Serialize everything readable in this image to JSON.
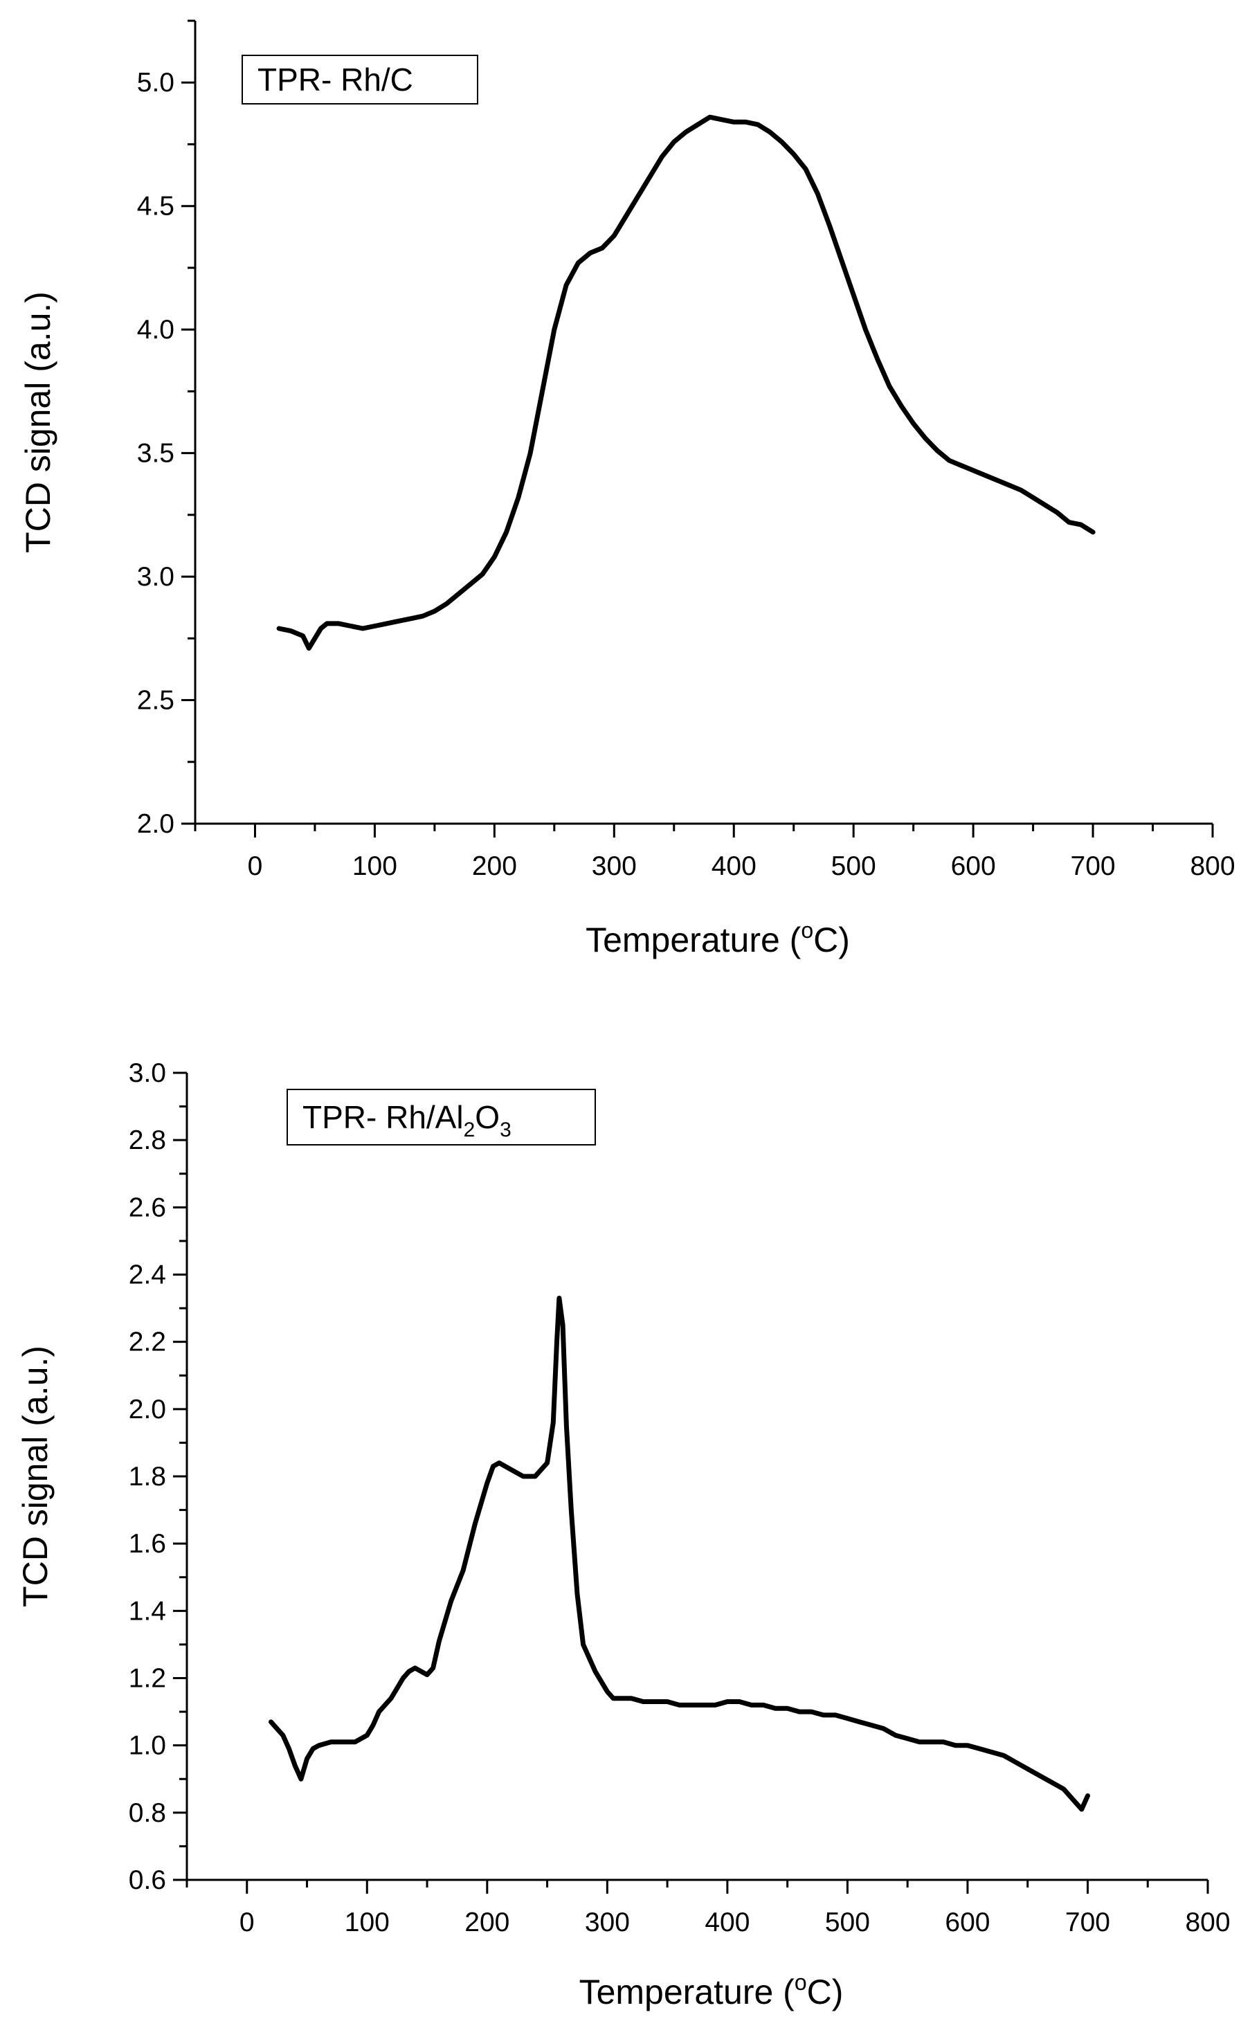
{
  "chart_data": [
    {
      "type": "line",
      "legend_label": "TPR- Rh/C",
      "legend_parts": [
        {
          "t": "TPR- Rh/C",
          "sub": false
        }
      ],
      "xlabel_main": "Temperature (",
      "xlabel_sup": "o",
      "xlabel_end": "C)",
      "ylabel": "TCD signal (a.u.)",
      "xlim": [
        -50,
        800
      ],
      "ylim": [
        2.0,
        5.25
      ],
      "x_ticks": [
        0,
        100,
        200,
        300,
        400,
        500,
        600,
        700,
        800
      ],
      "x_tick_labels": [
        "0",
        "100",
        "200",
        "300",
        "400",
        "500",
        "600",
        "700",
        "800"
      ],
      "y_ticks": [
        2.0,
        2.5,
        3.0,
        3.5,
        4.0,
        4.5,
        5.0
      ],
      "y_tick_labels": [
        "2.0",
        "2.5",
        "3.0",
        "3.5",
        "4.0",
        "4.5",
        "5.0"
      ],
      "series": [
        {
          "name": "TPR- Rh/C",
          "color": "#000000",
          "x": [
            20,
            30,
            40,
            45,
            50,
            55,
            60,
            70,
            80,
            90,
            100,
            110,
            120,
            130,
            140,
            150,
            160,
            170,
            180,
            190,
            200,
            210,
            220,
            230,
            240,
            250,
            260,
            270,
            280,
            290,
            300,
            310,
            320,
            330,
            340,
            350,
            360,
            370,
            380,
            390,
            400,
            410,
            420,
            430,
            440,
            450,
            460,
            470,
            480,
            490,
            500,
            510,
            520,
            530,
            540,
            550,
            560,
            570,
            580,
            590,
            600,
            610,
            620,
            630,
            640,
            650,
            660,
            670,
            680,
            690,
            700
          ],
          "y": [
            2.79,
            2.78,
            2.76,
            2.71,
            2.75,
            2.79,
            2.81,
            2.81,
            2.8,
            2.79,
            2.8,
            2.81,
            2.82,
            2.83,
            2.84,
            2.86,
            2.89,
            2.93,
            2.97,
            3.01,
            3.08,
            3.18,
            3.32,
            3.5,
            3.75,
            4.0,
            4.18,
            4.27,
            4.31,
            4.33,
            4.38,
            4.46,
            4.54,
            4.62,
            4.7,
            4.76,
            4.8,
            4.83,
            4.86,
            4.85,
            4.84,
            4.84,
            4.83,
            4.8,
            4.76,
            4.71,
            4.65,
            4.55,
            4.42,
            4.28,
            4.14,
            4.0,
            3.88,
            3.77,
            3.69,
            3.62,
            3.56,
            3.51,
            3.47,
            3.45,
            3.43,
            3.41,
            3.39,
            3.37,
            3.35,
            3.32,
            3.29,
            3.26,
            3.22,
            3.21,
            3.18
          ]
        }
      ]
    },
    {
      "type": "line",
      "legend_label": "TPR- Rh/Al2O3",
      "legend_parts": [
        {
          "t": "TPR- Rh/Al",
          "sub": false
        },
        {
          "t": "2",
          "sub": true
        },
        {
          "t": "O",
          "sub": false
        },
        {
          "t": "3",
          "sub": true
        }
      ],
      "xlabel_main": "Temperature (",
      "xlabel_sup": "o",
      "xlabel_end": "C)",
      "ylabel": "TCD signal (a.u.)",
      "xlim": [
        -50,
        800
      ],
      "ylim": [
        0.6,
        3.0
      ],
      "x_ticks": [
        0,
        100,
        200,
        300,
        400,
        500,
        600,
        700,
        800
      ],
      "x_tick_labels": [
        "0",
        "100",
        "200",
        "300",
        "400",
        "500",
        "600",
        "700",
        "800"
      ],
      "y_ticks": [
        0.6,
        0.8,
        1.0,
        1.2,
        1.4,
        1.6,
        1.8,
        2.0,
        2.2,
        2.4,
        2.6,
        2.8,
        3.0
      ],
      "y_tick_labels": [
        "0.6",
        "0.8",
        "1.0",
        "1.2",
        "1.4",
        "1.6",
        "1.8",
        "2.0",
        "2.2",
        "2.4",
        "2.6",
        "2.8",
        "3.0"
      ],
      "series": [
        {
          "name": "TPR- Rh/Al2O3",
          "color": "#000000",
          "x": [
            20,
            25,
            30,
            35,
            40,
            45,
            50,
            55,
            60,
            70,
            80,
            90,
            100,
            105,
            110,
            120,
            130,
            135,
            140,
            145,
            150,
            155,
            160,
            170,
            180,
            190,
            200,
            205,
            210,
            220,
            230,
            240,
            250,
            255,
            258,
            260,
            263,
            266,
            270,
            275,
            280,
            290,
            300,
            305,
            310,
            320,
            330,
            340,
            350,
            360,
            370,
            380,
            390,
            400,
            410,
            420,
            430,
            440,
            450,
            460,
            470,
            480,
            490,
            500,
            510,
            520,
            530,
            540,
            550,
            560,
            570,
            580,
            590,
            600,
            610,
            620,
            630,
            640,
            650,
            660,
            670,
            680,
            690,
            695,
            700
          ],
          "y": [
            1.07,
            1.05,
            1.03,
            0.99,
            0.94,
            0.9,
            0.96,
            0.99,
            1.0,
            1.01,
            1.01,
            1.01,
            1.03,
            1.06,
            1.1,
            1.14,
            1.2,
            1.22,
            1.23,
            1.22,
            1.21,
            1.23,
            1.31,
            1.43,
            1.52,
            1.66,
            1.78,
            1.83,
            1.84,
            1.82,
            1.8,
            1.8,
            1.84,
            1.96,
            2.2,
            2.33,
            2.25,
            1.95,
            1.7,
            1.45,
            1.3,
            1.22,
            1.16,
            1.14,
            1.14,
            1.14,
            1.13,
            1.13,
            1.13,
            1.12,
            1.12,
            1.12,
            1.12,
            1.13,
            1.13,
            1.12,
            1.12,
            1.11,
            1.11,
            1.1,
            1.1,
            1.09,
            1.09,
            1.08,
            1.07,
            1.06,
            1.05,
            1.03,
            1.02,
            1.01,
            1.01,
            1.01,
            1.0,
            1.0,
            0.99,
            0.98,
            0.97,
            0.95,
            0.93,
            0.91,
            0.89,
            0.87,
            0.83,
            0.81,
            0.85
          ]
        }
      ]
    }
  ]
}
